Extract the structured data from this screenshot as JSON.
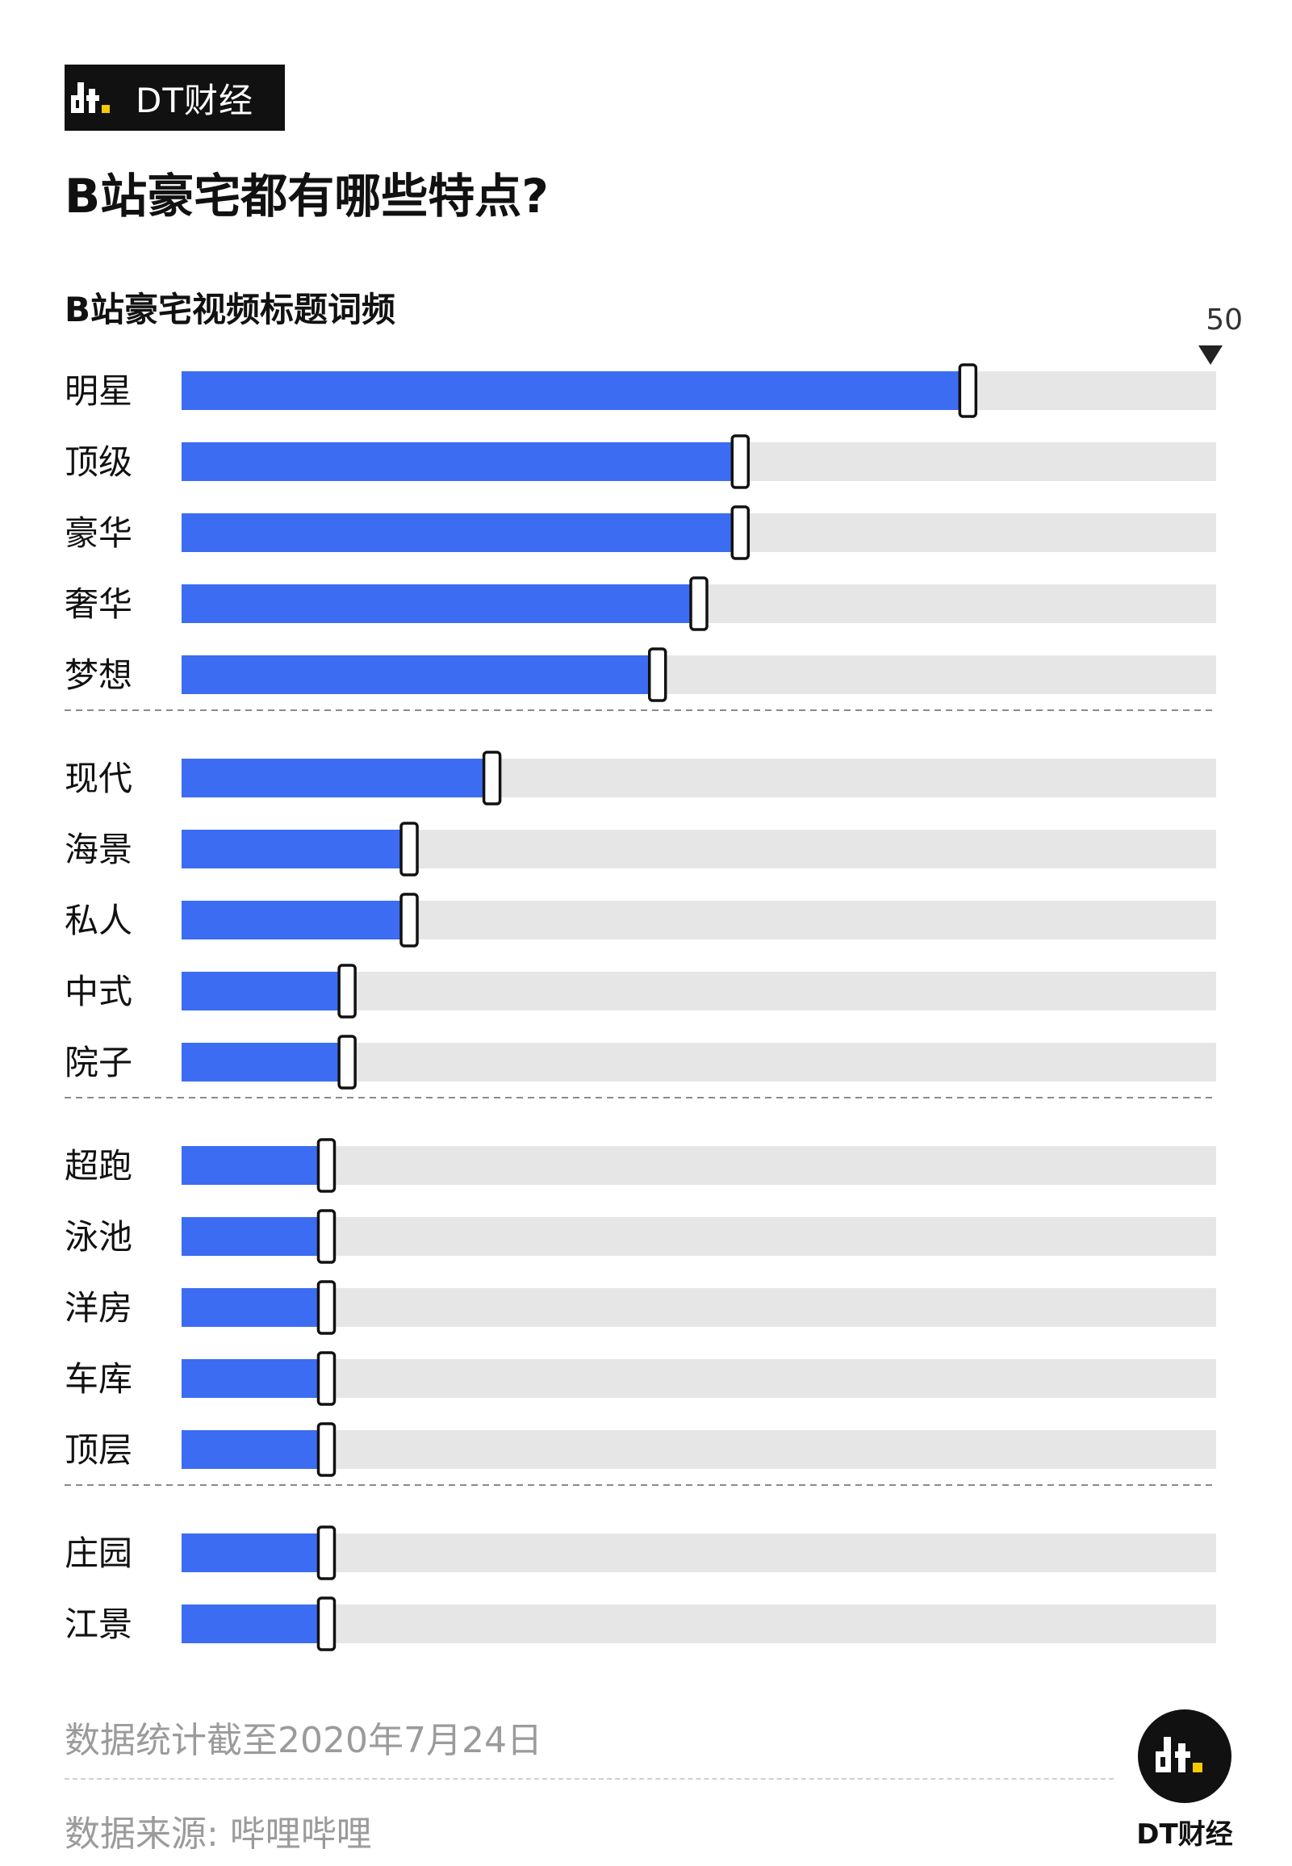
{
  "brand": {
    "name": "DT财经"
  },
  "title": "B站豪宅都有哪些特点?",
  "chart_data": {
    "type": "bar",
    "orientation": "horizontal",
    "title": "B站豪宅视频标题词频",
    "max_label": "50",
    "xlim": [
      0,
      50
    ],
    "grid": false,
    "colors": {
      "bar": "#3c6cf2",
      "track": "#e6e6e6",
      "marker_stroke": "#111111",
      "divider": "#8a8a8a"
    },
    "groups": [
      {
        "categories": [
          "明星",
          "顶级",
          "豪华",
          "奢华",
          "梦想"
        ],
        "values": [
          38,
          27,
          27,
          25,
          23
        ]
      },
      {
        "categories": [
          "现代",
          "海景",
          "私人",
          "中式",
          "院子"
        ],
        "values": [
          15,
          11,
          11,
          8,
          8
        ]
      },
      {
        "categories": [
          "超跑",
          "泳池",
          "洋房",
          "车库",
          "顶层"
        ],
        "values": [
          7,
          7,
          7,
          7,
          7
        ]
      },
      {
        "categories": [
          "庄园",
          "江景"
        ],
        "values": [
          7,
          7
        ]
      }
    ]
  },
  "footer": {
    "date_note": "数据统计截至2020年7月24日",
    "source": "数据来源: 哔哩哔哩",
    "logo_name": "DT财经"
  }
}
